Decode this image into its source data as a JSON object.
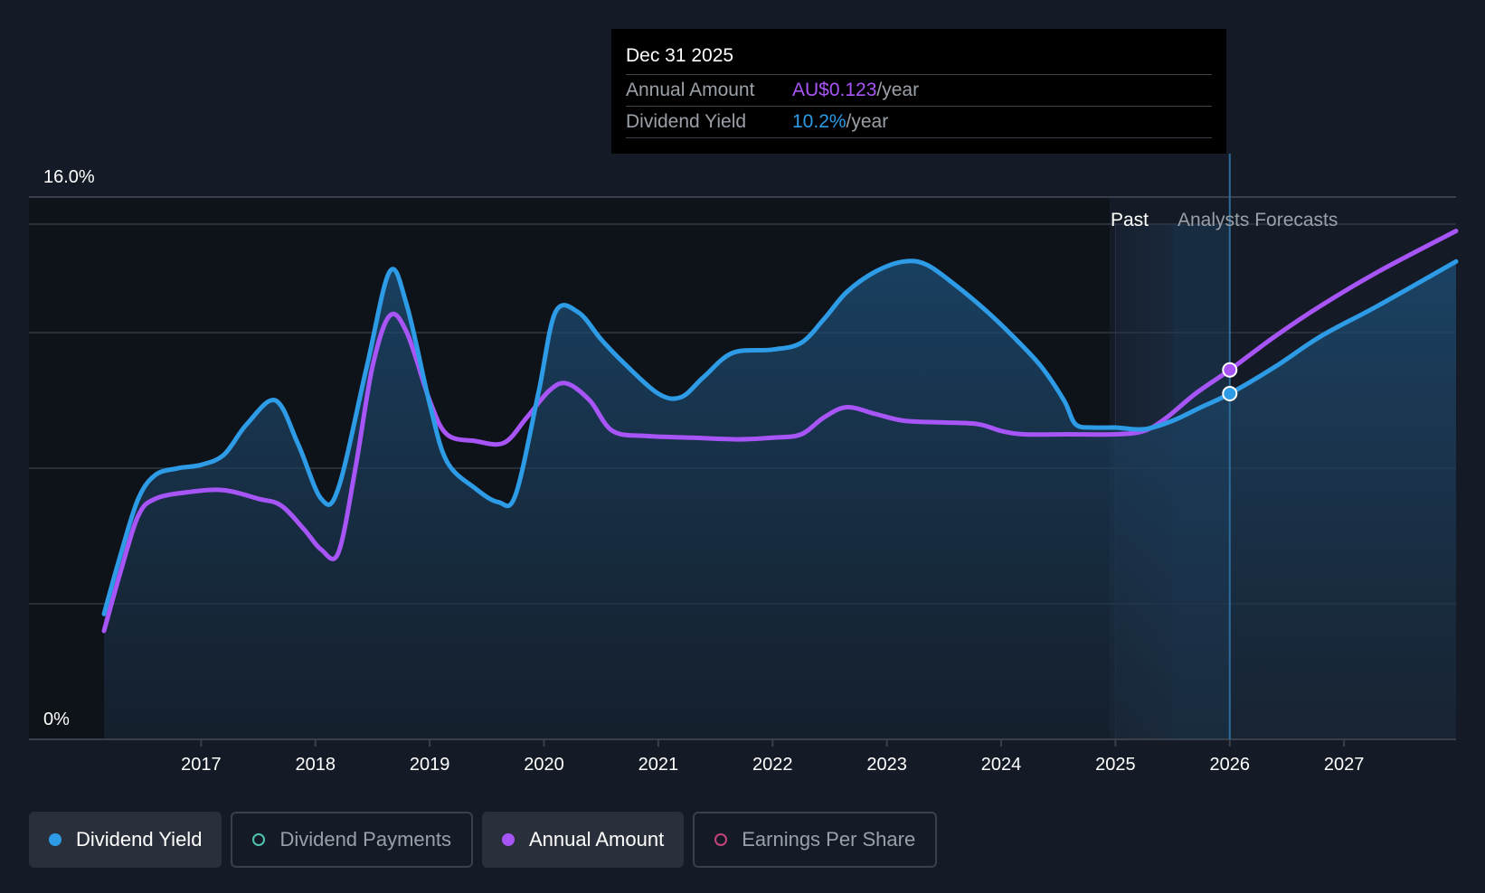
{
  "tooltip": {
    "date": "Dec 31 2025",
    "rows": [
      {
        "label": "Annual Amount",
        "value": "AU$0.123",
        "unit": "/year"
      },
      {
        "label": "Dividend Yield",
        "value": "10.2%",
        "unit": "/year"
      }
    ]
  },
  "legend": [
    {
      "label": "Dividend Yield",
      "color": "#2d9be6",
      "filled": true,
      "active": true
    },
    {
      "label": "Dividend Payments",
      "color": "#4fc3b0",
      "filled": false,
      "active": false
    },
    {
      "label": "Annual Amount",
      "color": "#a855f7",
      "filled": true,
      "active": true
    },
    {
      "label": "Earnings Per Share",
      "color": "#c2437e",
      "filled": false,
      "active": false
    }
  ],
  "chart_data": {
    "type": "line",
    "y_tick_labels": {
      "top": "16.0%",
      "bottom": "0%"
    },
    "ylim": [
      0,
      16
    ],
    "xlim": [
      2016.0,
      2027.98
    ],
    "x_ticks": [
      "2017",
      "2018",
      "2019",
      "2020",
      "2021",
      "2022",
      "2023",
      "2024",
      "2025",
      "2026",
      "2027"
    ],
    "region_labels": {
      "past": "Past",
      "forecast": "Analysts Forecasts"
    },
    "past_end": 2025.0,
    "forecast_start": 2025.5,
    "cursor_x": 2026.0,
    "grid": true,
    "colors": {
      "yield": "#2d9be6",
      "annual": "#a855f7"
    },
    "series": [
      {
        "name": "Dividend Yield",
        "key": "yield",
        "points": [
          [
            2016.15,
            3.7
          ],
          [
            2016.3,
            5.5
          ],
          [
            2016.45,
            7.1
          ],
          [
            2016.6,
            7.8
          ],
          [
            2016.8,
            8.0
          ],
          [
            2017.0,
            8.1
          ],
          [
            2017.2,
            8.4
          ],
          [
            2017.4,
            9.3
          ],
          [
            2017.65,
            10.0
          ],
          [
            2017.85,
            8.7
          ],
          [
            2018.05,
            7.1
          ],
          [
            2018.2,
            7.4
          ],
          [
            2018.45,
            11.0
          ],
          [
            2018.65,
            13.8
          ],
          [
            2018.8,
            12.8
          ],
          [
            2019.0,
            9.9
          ],
          [
            2019.15,
            8.2
          ],
          [
            2019.4,
            7.4
          ],
          [
            2019.6,
            7.0
          ],
          [
            2019.75,
            7.2
          ],
          [
            2019.95,
            10.2
          ],
          [
            2020.1,
            12.6
          ],
          [
            2020.3,
            12.6
          ],
          [
            2020.5,
            11.8
          ],
          [
            2020.7,
            11.1
          ],
          [
            2021.0,
            10.2
          ],
          [
            2021.2,
            10.1
          ],
          [
            2021.4,
            10.7
          ],
          [
            2021.65,
            11.4
          ],
          [
            2022.0,
            11.5
          ],
          [
            2022.25,
            11.7
          ],
          [
            2022.45,
            12.4
          ],
          [
            2022.65,
            13.2
          ],
          [
            2022.9,
            13.8
          ],
          [
            2023.15,
            14.1
          ],
          [
            2023.35,
            14.0
          ],
          [
            2023.6,
            13.4
          ],
          [
            2023.85,
            12.7
          ],
          [
            2024.1,
            11.9
          ],
          [
            2024.35,
            11.0
          ],
          [
            2024.55,
            10.0
          ],
          [
            2024.65,
            9.3
          ],
          [
            2024.8,
            9.2
          ],
          [
            2025.0,
            9.2
          ],
          [
            2025.25,
            9.15
          ],
          [
            2025.5,
            9.4
          ],
          [
            2025.75,
            9.8
          ],
          [
            2026.0,
            10.2
          ],
          [
            2026.4,
            11.0
          ],
          [
            2026.8,
            11.9
          ],
          [
            2027.3,
            12.8
          ],
          [
            2027.98,
            14.1
          ]
        ]
      },
      {
        "name": "Annual Amount",
        "key": "annual",
        "points": [
          [
            2016.15,
            3.2
          ],
          [
            2016.3,
            5.0
          ],
          [
            2016.45,
            6.6
          ],
          [
            2016.6,
            7.1
          ],
          [
            2016.9,
            7.3
          ],
          [
            2017.2,
            7.35
          ],
          [
            2017.5,
            7.1
          ],
          [
            2017.7,
            6.9
          ],
          [
            2017.9,
            6.2
          ],
          [
            2018.05,
            5.6
          ],
          [
            2018.2,
            5.5
          ],
          [
            2018.35,
            8.0
          ],
          [
            2018.5,
            11.0
          ],
          [
            2018.65,
            12.5
          ],
          [
            2018.8,
            12.0
          ],
          [
            2019.0,
            10.0
          ],
          [
            2019.15,
            9.0
          ],
          [
            2019.4,
            8.8
          ],
          [
            2019.65,
            8.75
          ],
          [
            2019.85,
            9.5
          ],
          [
            2020.05,
            10.3
          ],
          [
            2020.2,
            10.5
          ],
          [
            2020.4,
            10.0
          ],
          [
            2020.6,
            9.1
          ],
          [
            2020.9,
            8.95
          ],
          [
            2021.3,
            8.9
          ],
          [
            2021.7,
            8.85
          ],
          [
            2022.0,
            8.9
          ],
          [
            2022.25,
            9.0
          ],
          [
            2022.45,
            9.5
          ],
          [
            2022.65,
            9.8
          ],
          [
            2022.9,
            9.6
          ],
          [
            2023.15,
            9.4
          ],
          [
            2023.5,
            9.35
          ],
          [
            2023.8,
            9.3
          ],
          [
            2024.0,
            9.1
          ],
          [
            2024.2,
            9.0
          ],
          [
            2024.6,
            9.0
          ],
          [
            2025.0,
            9.0
          ],
          [
            2025.25,
            9.1
          ],
          [
            2025.45,
            9.5
          ],
          [
            2025.7,
            10.2
          ],
          [
            2026.0,
            10.9
          ],
          [
            2026.4,
            11.9
          ],
          [
            2026.8,
            12.8
          ],
          [
            2027.3,
            13.8
          ],
          [
            2027.98,
            15.0
          ]
        ]
      }
    ],
    "markers": [
      {
        "series": "yield",
        "x": 2026.0,
        "y": 10.2
      },
      {
        "series": "annual",
        "x": 2026.0,
        "y": 10.9
      }
    ]
  }
}
